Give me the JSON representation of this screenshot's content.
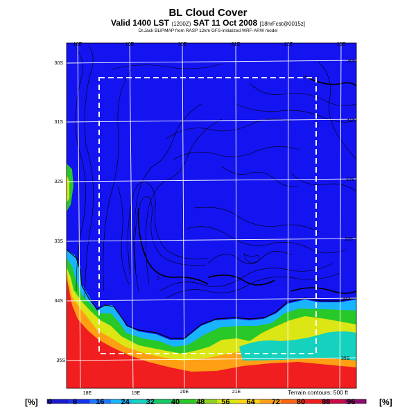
{
  "header": {
    "title": "BL Cloud Cover",
    "subtitle_main": "Valid 1400 LST",
    "subtitle_code": "(1200Z)",
    "subtitle_date": "SAT 11 Oct 2008",
    "subtitle_run": "[18hrFcst@0015z]",
    "credit": "Dr.Jack BLIPMAP from RASP 12km GFS-initialized WRF-ARW model"
  },
  "map": {
    "top_lon_labels": [
      "18E",
      "19E",
      "20E",
      "21E",
      "22E",
      "23E"
    ],
    "bottom_lon_labels": [
      "18E",
      "19E",
      "20E",
      "21E"
    ],
    "right_lat_labels": [
      "30S",
      "31S",
      "32S",
      "33S",
      "34S",
      "35S"
    ],
    "left_lat_labels": [
      "30S",
      "31S",
      "32S",
      "33S",
      "34S",
      "35S"
    ],
    "terrain_note": "Terrain contours: 500 ft",
    "point_marker": "1"
  },
  "colorbar": {
    "unit_left": "[%]",
    "unit_right": "[%]",
    "ticks": [
      "0",
      "8",
      "16",
      "24",
      "32",
      "40",
      "48",
      "56",
      "64",
      "72",
      "80",
      "88",
      "96"
    ],
    "colors": [
      "#1a1acd",
      "#1432f0",
      "#1e78ff",
      "#19b4ff",
      "#14d2be",
      "#14c864",
      "#28c828",
      "#8cd21e",
      "#dce614",
      "#ffd214",
      "#ffa014",
      "#ff6414",
      "#f01e1e",
      "#c80a46",
      "#8c0a6e"
    ]
  },
  "colors": {
    "ocean_land_base": "#1414f0",
    "grid": "#ffffff",
    "contour": "#000000"
  }
}
